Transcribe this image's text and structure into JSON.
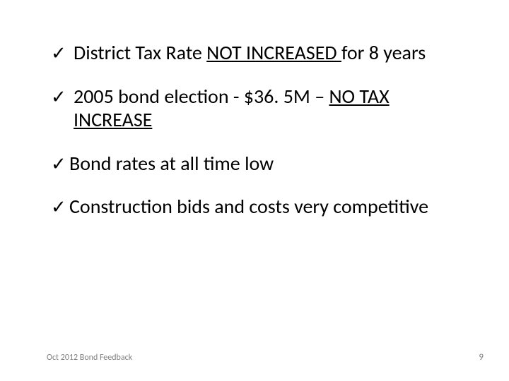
{
  "bullets": [
    {
      "checkSpacing": "loose",
      "segments": [
        {
          "text": "District Tax Rate ",
          "underline": false
        },
        {
          "text": "NOT INCREASED ",
          "underline": true
        },
        {
          "text": "for 8 years",
          "underline": false
        }
      ]
    },
    {
      "checkSpacing": "loose",
      "segments": [
        {
          "text": "2005 bond election - $36. 5M – ",
          "underline": false
        },
        {
          "text": "NO TAX INCREASE",
          "underline": true
        }
      ]
    },
    {
      "checkSpacing": "tight",
      "segments": [
        {
          "text": "Bond rates at all time low",
          "underline": false
        }
      ]
    },
    {
      "checkSpacing": "tight",
      "segments": [
        {
          "text": "Construction bids and costs very competitive",
          "underline": false
        }
      ]
    }
  ],
  "checkGlyph": "✓",
  "footer": "Oct 2012 Bond Feedback",
  "pageNumber": "9",
  "colors": {
    "background": "#ffffff",
    "text": "#000000",
    "footer": "#7f7f7f"
  },
  "fontSizes": {
    "bullet": 28,
    "footer": 12,
    "pageNumber": 13
  }
}
